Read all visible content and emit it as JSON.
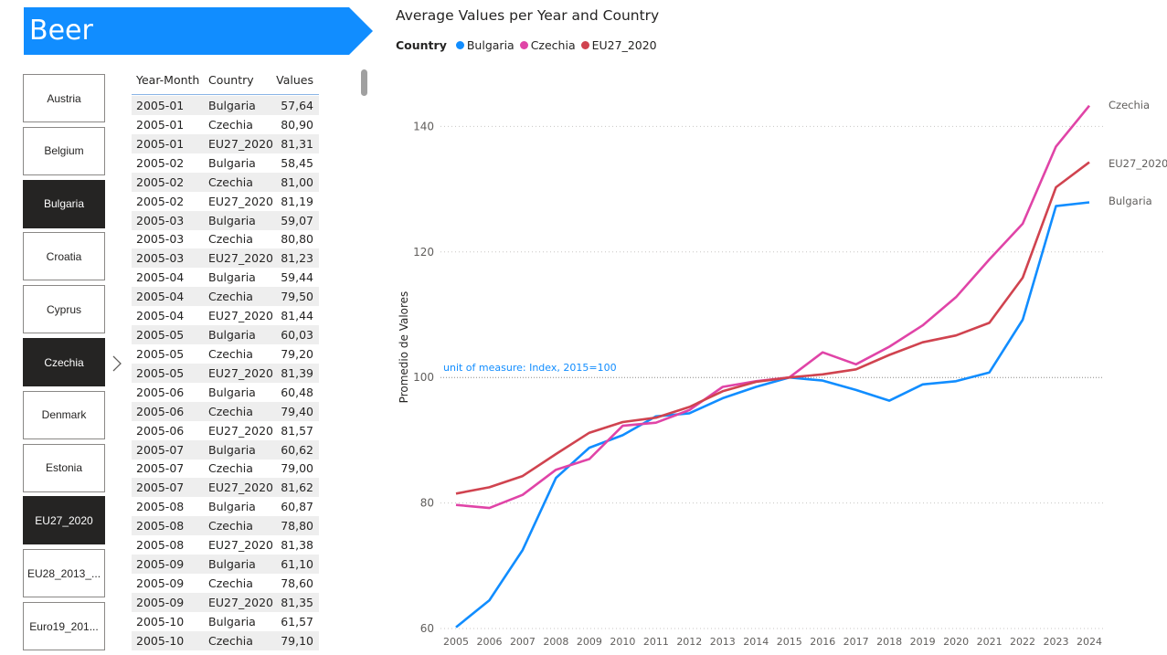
{
  "banner": {
    "title": "Beer",
    "color": "#118dff"
  },
  "slicer": {
    "items": [
      {
        "label": "Austria",
        "selected": false
      },
      {
        "label": "Belgium",
        "selected": false
      },
      {
        "label": "Bulgaria",
        "selected": true
      },
      {
        "label": "Croatia",
        "selected": false
      },
      {
        "label": "Cyprus",
        "selected": false
      },
      {
        "label": "Czechia",
        "selected": true
      },
      {
        "label": "Denmark",
        "selected": false
      },
      {
        "label": "Estonia",
        "selected": false
      },
      {
        "label": "EU27_2020",
        "selected": true
      },
      {
        "label": "EU28_2013_...",
        "selected": false
      },
      {
        "label": "Euro19_201...",
        "selected": false
      }
    ]
  },
  "table": {
    "columns": [
      "Year-Month",
      "Country",
      "Values"
    ],
    "rows": [
      [
        "2005-01",
        "Bulgaria",
        "57,64"
      ],
      [
        "2005-01",
        "Czechia",
        "80,90"
      ],
      [
        "2005-01",
        "EU27_2020",
        "81,31"
      ],
      [
        "2005-02",
        "Bulgaria",
        "58,45"
      ],
      [
        "2005-02",
        "Czechia",
        "81,00"
      ],
      [
        "2005-02",
        "EU27_2020",
        "81,19"
      ],
      [
        "2005-03",
        "Bulgaria",
        "59,07"
      ],
      [
        "2005-03",
        "Czechia",
        "80,80"
      ],
      [
        "2005-03",
        "EU27_2020",
        "81,23"
      ],
      [
        "2005-04",
        "Bulgaria",
        "59,44"
      ],
      [
        "2005-04",
        "Czechia",
        "79,50"
      ],
      [
        "2005-04",
        "EU27_2020",
        "81,44"
      ],
      [
        "2005-05",
        "Bulgaria",
        "60,03"
      ],
      [
        "2005-05",
        "Czechia",
        "79,20"
      ],
      [
        "2005-05",
        "EU27_2020",
        "81,39"
      ],
      [
        "2005-06",
        "Bulgaria",
        "60,48"
      ],
      [
        "2005-06",
        "Czechia",
        "79,40"
      ],
      [
        "2005-06",
        "EU27_2020",
        "81,57"
      ],
      [
        "2005-07",
        "Bulgaria",
        "60,62"
      ],
      [
        "2005-07",
        "Czechia",
        "79,00"
      ],
      [
        "2005-07",
        "EU27_2020",
        "81,62"
      ],
      [
        "2005-08",
        "Bulgaria",
        "60,87"
      ],
      [
        "2005-08",
        "Czechia",
        "78,80"
      ],
      [
        "2005-08",
        "EU27_2020",
        "81,38"
      ],
      [
        "2005-09",
        "Bulgaria",
        "61,10"
      ],
      [
        "2005-09",
        "Czechia",
        "78,60"
      ],
      [
        "2005-09",
        "EU27_2020",
        "81,35"
      ],
      [
        "2005-10",
        "Bulgaria",
        "61,57"
      ],
      [
        "2005-10",
        "Czechia",
        "79,10"
      ]
    ]
  },
  "chart_data": {
    "type": "line",
    "title": "Average Values per Year and Country",
    "legend_title": "Country",
    "legend_placement": "top-left",
    "ylabel": "Promedio de Valores",
    "xlabel": "",
    "ylim": [
      60,
      145
    ],
    "yticks": [
      60,
      80,
      100,
      120,
      140
    ],
    "grid": true,
    "reference_line": {
      "value": 100,
      "label": "unit of measure: Index, 2015=100",
      "color": "#118dff"
    },
    "x": [
      "2005",
      "2006",
      "2007",
      "2008",
      "2009",
      "2010",
      "2011",
      "2012",
      "2013",
      "2014",
      "2015",
      "2016",
      "2017",
      "2018",
      "2019",
      "2020",
      "2021",
      "2022",
      "2023",
      "2024"
    ],
    "series": [
      {
        "name": "Bulgaria",
        "color": "#118dff",
        "values": [
          60.2,
          64.5,
          72.5,
          84.0,
          88.8,
          90.8,
          93.8,
          94.3,
          96.7,
          98.5,
          100.0,
          99.5,
          98.0,
          96.3,
          98.9,
          99.4,
          100.8,
          109.2,
          127.3,
          127.9
        ]
      },
      {
        "name": "Czechia",
        "color": "#e044a7",
        "values": [
          79.7,
          79.2,
          81.3,
          85.3,
          87.0,
          92.3,
          92.8,
          94.8,
          98.5,
          99.4,
          100.0,
          104.0,
          102.1,
          104.9,
          108.3,
          112.8,
          118.8,
          124.5,
          136.8,
          143.3
        ]
      },
      {
        "name": "EU27_2020",
        "color": "#d0434f",
        "values": [
          81.5,
          82.5,
          84.3,
          87.8,
          91.2,
          92.9,
          93.6,
          95.3,
          97.8,
          99.3,
          100.0,
          100.5,
          101.3,
          103.6,
          105.6,
          106.7,
          108.7,
          115.9,
          130.3,
          134.3
        ]
      }
    ]
  }
}
